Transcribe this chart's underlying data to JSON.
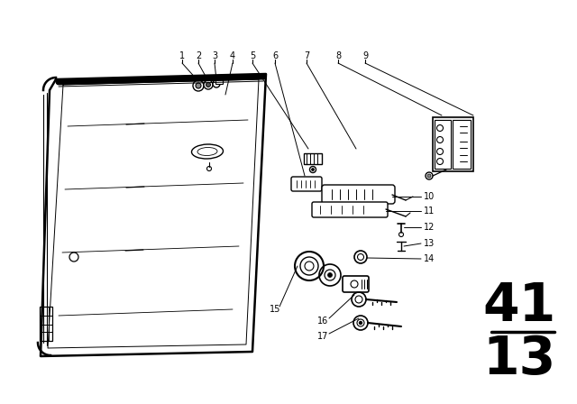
{
  "background_color": "#ffffff",
  "line_color": "#000000",
  "page_number_top": "41",
  "page_number_bottom": "13",
  "part_labels": [
    "1",
    "2",
    "3",
    "4",
    "5",
    "6",
    "7",
    "8",
    "9",
    "10",
    "11",
    "12",
    "13",
    "14",
    "15",
    "16",
    "17"
  ]
}
